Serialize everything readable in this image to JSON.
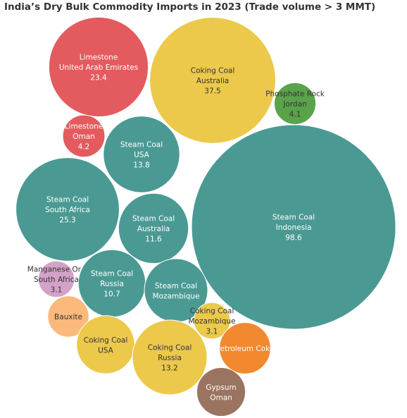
{
  "chart_data": {
    "type": "bubble",
    "title": "India’s Dry Bulk Commodity Imports in 2023 (Trade volume > 3 MMT)",
    "colors": {
      "Steam Coal": "#4a9a93",
      "Coking Coal": "#ecc94b",
      "Limestone": "#e35b5e",
      "Phosphate Rock": "#5aa34a",
      "Manganese Ore": "#d4a2c9",
      "Bauxite": "#fbb97b",
      "Petroleum Coke": "#f2892e",
      "Gypsum": "#9b7461"
    },
    "items": [
      {
        "commodity": "Limestone",
        "origin": "United Arab Emirates",
        "value": 23.4,
        "value_label": "23.4"
      },
      {
        "commodity": "Coking Coal",
        "origin": "Australia",
        "value": 37.5,
        "value_label": "37.5"
      },
      {
        "commodity": "Phosphate Rock",
        "origin": "Jordan",
        "value": 4.1,
        "value_label": "4.1"
      },
      {
        "commodity": "Limestone",
        "origin": "Oman",
        "value": 4.2,
        "value_label": "4.2"
      },
      {
        "commodity": "Steam Coal",
        "origin": "USA",
        "value": 13.8,
        "value_label": "13.8"
      },
      {
        "commodity": "Steam Coal",
        "origin": "South Africa",
        "value": 25.3,
        "value_label": "25.3"
      },
      {
        "commodity": "Steam Coal",
        "origin": "Indonesia",
        "value": 98.6,
        "value_label": "98.6"
      },
      {
        "commodity": "Steam Coal",
        "origin": "Australia",
        "value": 11.6,
        "value_label": "11.6"
      },
      {
        "commodity": "Manganese Ore",
        "origin": "South Africa",
        "value": 3.1,
        "value_label": "3.1"
      },
      {
        "commodity": "Steam Coal",
        "origin": "Russia",
        "value": 10.7,
        "value_label": "10.7"
      },
      {
        "commodity": "Steam Coal",
        "origin": "Mozambique",
        "value": 9.5,
        "value_label": ""
      },
      {
        "commodity": "Bauxite",
        "origin": "",
        "value": 4.0,
        "value_label": ""
      },
      {
        "commodity": "Coking Coal",
        "origin": "Mozambique",
        "value": 3.1,
        "value_label": "3.1"
      },
      {
        "commodity": "Coking Coal",
        "origin": "USA",
        "value": 8.0,
        "value_label": ""
      },
      {
        "commodity": "Coking Coal",
        "origin": "Russia",
        "value": 13.2,
        "value_label": "13.2"
      },
      {
        "commodity": "Petroleum Coke",
        "origin": "",
        "value": 6.2,
        "value_label": ""
      },
      {
        "commodity": "Gypsum",
        "origin": "Oman",
        "value": 5.6,
        "value_label": ""
      }
    ]
  }
}
